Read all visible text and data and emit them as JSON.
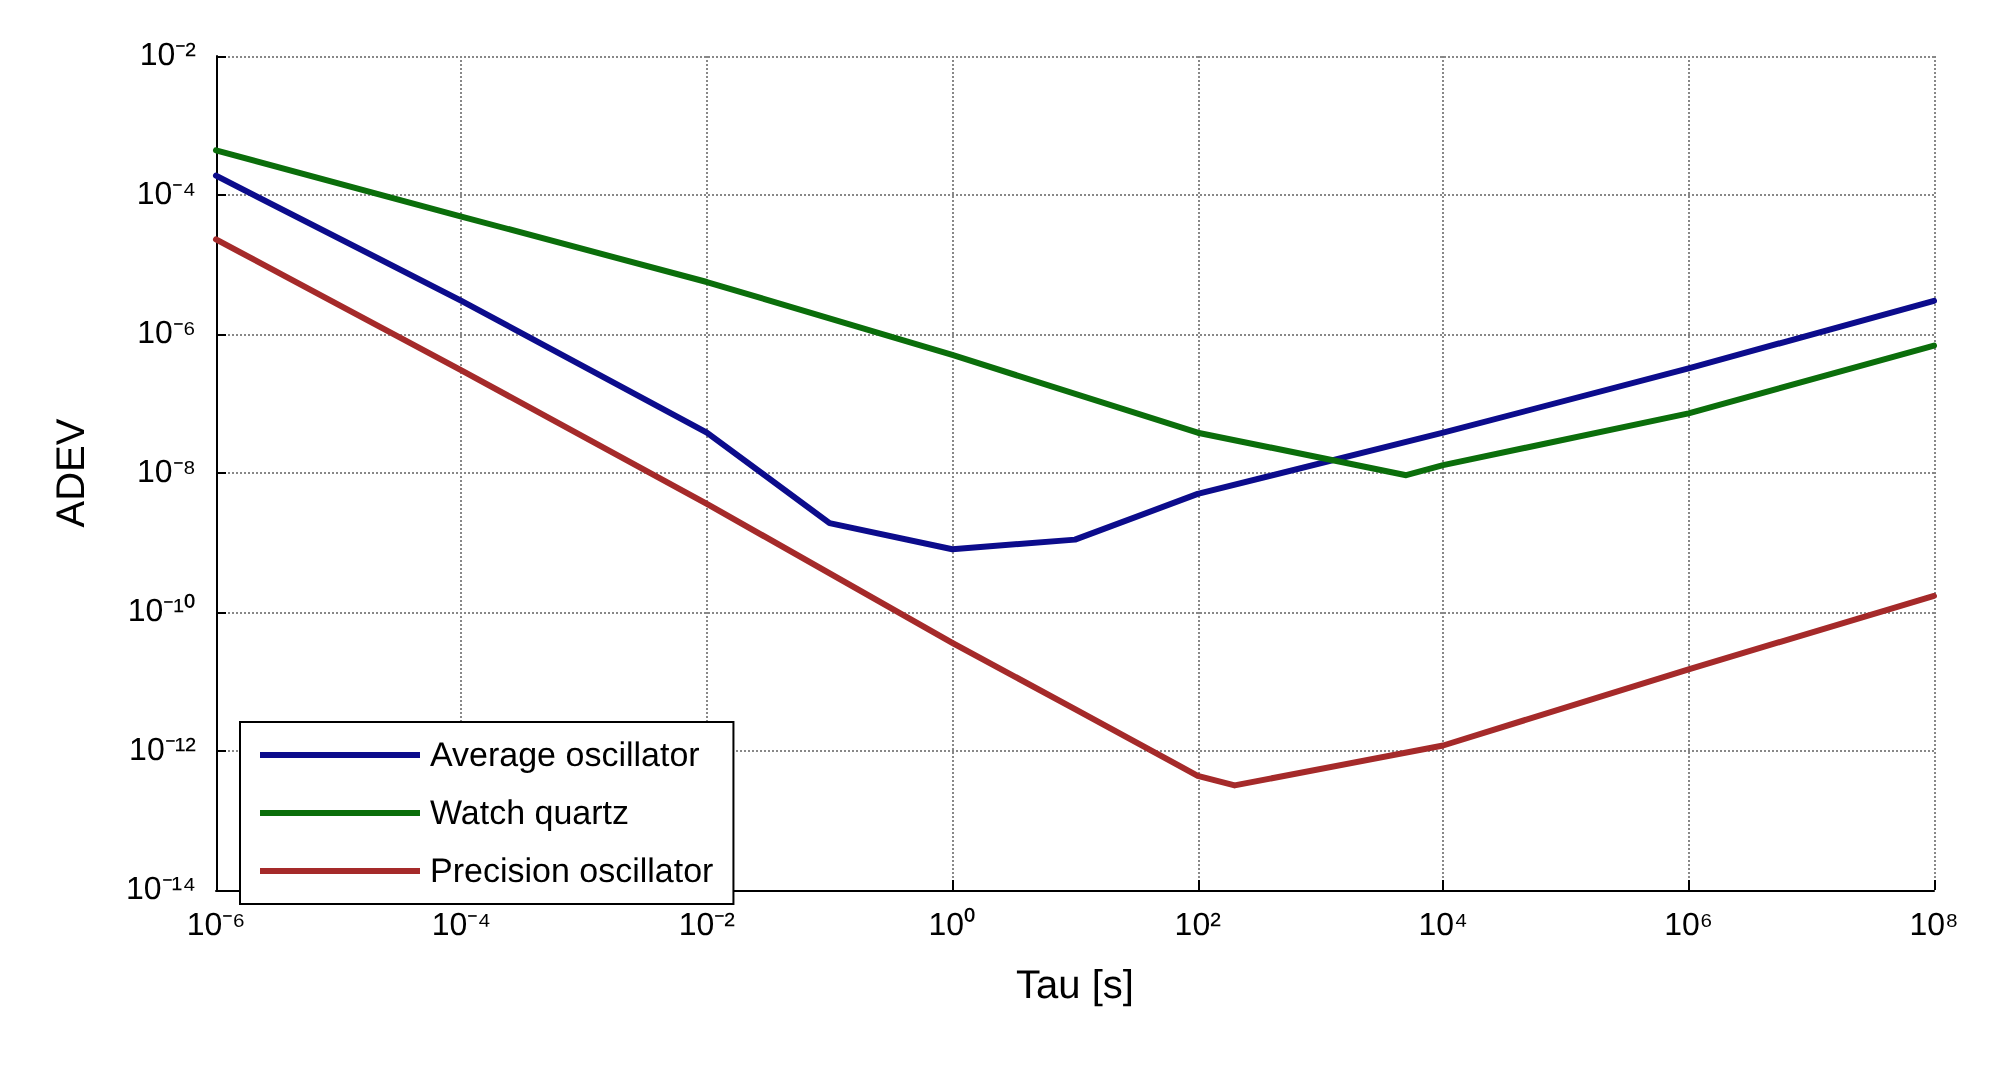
{
  "chart_data": {
    "type": "line",
    "xlabel": "Tau [s]",
    "ylabel": "ADEV",
    "log": "xy",
    "grid": true,
    "legend": "bottom left",
    "marker": "none",
    "line_style": "solid",
    "xlim": [
      1e-06,
      100000000.0
    ],
    "ylim": [
      1e-14,
      0.01
    ],
    "xticks": [
      {
        "value": 1e-06,
        "label": "10⁻⁶"
      },
      {
        "value": 0.0001,
        "label": "10⁻⁴"
      },
      {
        "value": 0.01,
        "label": "10⁻²"
      },
      {
        "value": 1,
        "label": "10⁰"
      },
      {
        "value": 100.0,
        "label": "10²"
      },
      {
        "value": 10000.0,
        "label": "10⁴"
      },
      {
        "value": 1000000.0,
        "label": "10⁶"
      },
      {
        "value": 100000000.0,
        "label": "10⁸"
      }
    ],
    "yticks": [
      {
        "value": 1e-14,
        "label": "10⁻¹⁴"
      },
      {
        "value": 1e-12,
        "label": "10⁻¹²"
      },
      {
        "value": 1e-10,
        "label": "10⁻¹⁰"
      },
      {
        "value": 1e-08,
        "label": "10⁻⁸"
      },
      {
        "value": 1e-06,
        "label": "10⁻⁶"
      },
      {
        "value": 0.0001,
        "label": "10⁻⁴"
      },
      {
        "value": 0.01,
        "label": "10⁻²"
      }
    ],
    "series": [
      {
        "name": "Average oscillator",
        "color": "#0c0c8c",
        "x": [
          1e-06,
          0.0001,
          0.01,
          0.1,
          1,
          10,
          100.0,
          10000.0,
          1000000.0,
          100000000.0
        ],
        "values": [
          0.00019,
          3e-06,
          3.8e-08,
          1.9e-09,
          8e-10,
          1.1e-09,
          5e-09,
          3.8e-08,
          3.2e-07,
          3e-06
        ]
      },
      {
        "name": "Watch quartz",
        "color": "#0b6e0b",
        "x": [
          1e-06,
          0.0001,
          0.01,
          1,
          100.0,
          5000.0,
          10000.0,
          1000000.0,
          100000000.0
        ],
        "values": [
          0.00044,
          4.9e-05,
          5.6e-06,
          5e-07,
          3.8e-08,
          9.3e-09,
          1.3e-08,
          7.2e-08,
          6.8e-07
        ]
      },
      {
        "name": "Precision oscillator",
        "color": "#a52a2a",
        "x": [
          1e-06,
          0.0001,
          0.01,
          1,
          10,
          100.0,
          200.0,
          10000.0,
          1000000.0,
          100000000.0
        ],
        "values": [
          2.3e-05,
          3e-07,
          3.6e-09,
          3.6e-11,
          4e-12,
          4.4e-13,
          3.2e-13,
          1.2e-12,
          1.5e-11,
          1.7e-10
        ]
      }
    ]
  }
}
